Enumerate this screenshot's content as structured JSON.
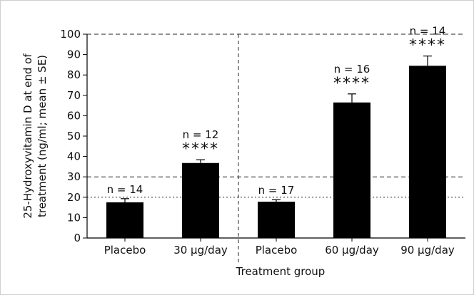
{
  "chart_data": {
    "type": "bar",
    "xlabel": "Treatment group",
    "ylabel_lines": [
      "25-Hydroxyvitamin D at end of",
      "treatment (ng/ml; mean ± SE)"
    ],
    "ylim": [
      0,
      100
    ],
    "yticks": [
      "0",
      "10",
      "20",
      "30",
      "40",
      "50",
      "60",
      "70",
      "80",
      "90",
      "100"
    ],
    "categories": [
      "Placebo",
      "30 µg/day",
      "Placebo",
      "60 µg/day",
      "90 µg/day"
    ],
    "values": [
      17.5,
      36.8,
      17.8,
      66.5,
      84.5
    ],
    "errors": [
      1.8,
      1.6,
      1.0,
      4.2,
      4.8
    ],
    "n_labels": [
      "n = 14",
      "n = 12",
      "n = 17",
      "n = 16",
      "n = 14"
    ],
    "significance": [
      "",
      "****",
      "",
      "****",
      "****"
    ],
    "reference_lines": [
      {
        "y": 100,
        "style": "dashed"
      },
      {
        "y": 30,
        "style": "dashed"
      },
      {
        "y": 20,
        "style": "dotted"
      }
    ],
    "group_divider_after_index": 1,
    "grid": false,
    "legend": "none",
    "bar_color": "#000000"
  }
}
